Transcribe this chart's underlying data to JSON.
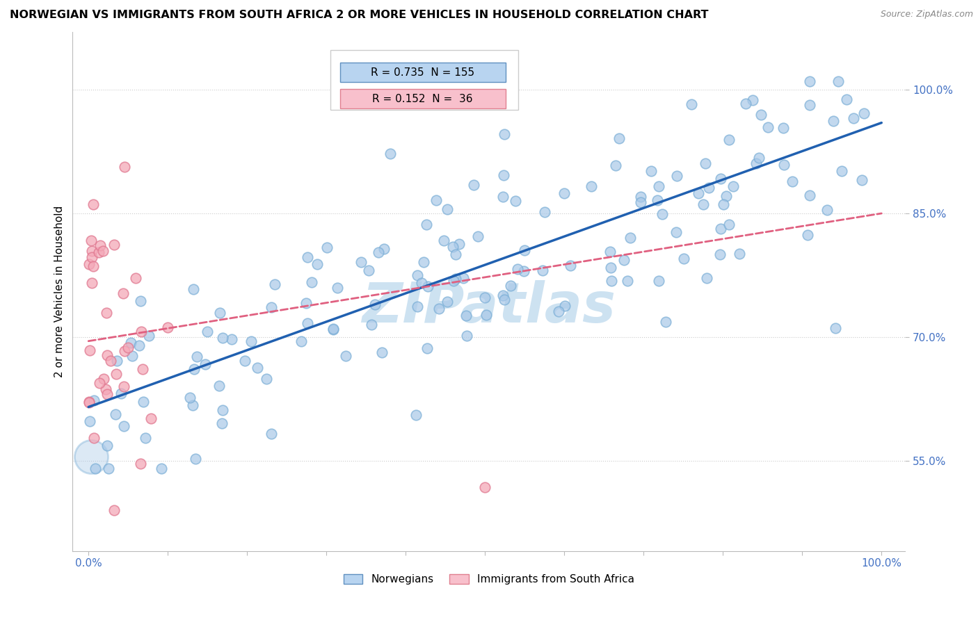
{
  "title": "NORWEGIAN VS IMMIGRANTS FROM SOUTH AFRICA 2 OR MORE VEHICLES IN HOUSEHOLD CORRELATION CHART",
  "source": "Source: ZipAtlas.com",
  "ylabel": "2 or more Vehicles in Household",
  "legend_R_norwegian": "0.735",
  "legend_N_norwegian": "155",
  "legend_R_immigrant": "0.152",
  "legend_N_immigrant": "36",
  "blue_scatter_color": "#a8c8e8",
  "blue_scatter_edge": "#7aaed6",
  "pink_scatter_color": "#f4a8b8",
  "pink_scatter_edge": "#e07890",
  "blue_line_color": "#2060b0",
  "pink_line_color": "#e06080",
  "legend_blue_fill": "#b8d4f0",
  "legend_blue_edge": "#6090c0",
  "legend_pink_fill": "#f8c0cc",
  "legend_pink_edge": "#e08090",
  "watermark_color": "#c8dff0",
  "tick_color": "#4472c4",
  "ytick_values": [
    0.55,
    0.7,
    0.85,
    1.0
  ],
  "ytick_labels": [
    "55.0%",
    "70.0%",
    "85.0%",
    "100.0%"
  ],
  "xlim": [
    -0.02,
    1.03
  ],
  "ylim": [
    0.44,
    1.07
  ],
  "nor_line_x0": 0.0,
  "nor_line_x1": 1.0,
  "nor_line_y0": 0.615,
  "nor_line_y1": 0.96,
  "imm_line_x0": 0.0,
  "imm_line_x1": 1.0,
  "imm_line_y0": 0.695,
  "imm_line_y1": 0.85
}
